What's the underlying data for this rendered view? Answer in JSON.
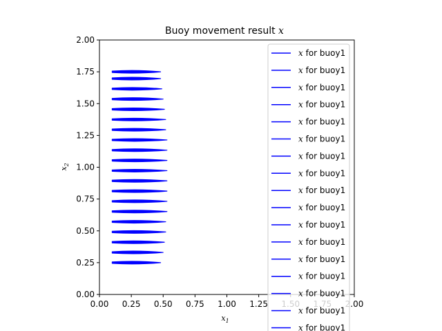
{
  "chart_data": {
    "type": "line",
    "title": "Buoy movement result",
    "title_var": "x",
    "xlabel": "x",
    "xlabel_sub": "1",
    "ylabel": "x",
    "ylabel_sub": "2",
    "xlim": [
      0.0,
      2.0
    ],
    "ylim": [
      0.0,
      2.0
    ],
    "xticks": [
      "0.00",
      "0.25",
      "0.50",
      "0.75",
      "1.00",
      "1.25",
      "1.50",
      "1.75",
      "2.00"
    ],
    "yticks": [
      "0.00",
      "0.25",
      "0.50",
      "0.75",
      "1.00",
      "1.25",
      "1.50",
      "1.75",
      "2.00"
    ],
    "series_color": "#0000ff",
    "legend": {
      "placement": "upper-right",
      "entry_var": "x",
      "entry_text": " for buoy1",
      "visible_entries": 17
    },
    "series": [
      {
        "y": 0.25,
        "x_start": 0.1,
        "x_end": 0.48
      },
      {
        "y": 0.3304,
        "x_start": 0.1,
        "x_end": 0.5
      },
      {
        "y": 0.4107,
        "x_start": 0.1,
        "x_end": 0.51
      },
      {
        "y": 0.4911,
        "x_start": 0.1,
        "x_end": 0.52
      },
      {
        "y": 0.5714,
        "x_start": 0.1,
        "x_end": 0.52
      },
      {
        "y": 0.6518,
        "x_start": 0.1,
        "x_end": 0.53
      },
      {
        "y": 0.7321,
        "x_start": 0.1,
        "x_end": 0.53
      },
      {
        "y": 0.8125,
        "x_start": 0.1,
        "x_end": 0.53
      },
      {
        "y": 0.8929,
        "x_start": 0.1,
        "x_end": 0.53
      },
      {
        "y": 0.9732,
        "x_start": 0.1,
        "x_end": 0.53
      },
      {
        "y": 1.0536,
        "x_start": 0.1,
        "x_end": 0.53
      },
      {
        "y": 1.1339,
        "x_start": 0.1,
        "x_end": 0.53
      },
      {
        "y": 1.2143,
        "x_start": 0.1,
        "x_end": 0.53
      },
      {
        "y": 1.2946,
        "x_start": 0.1,
        "x_end": 0.52
      },
      {
        "y": 1.375,
        "x_start": 0.1,
        "x_end": 0.52
      },
      {
        "y": 1.4554,
        "x_start": 0.1,
        "x_end": 0.51
      },
      {
        "y": 1.5357,
        "x_start": 0.1,
        "x_end": 0.5
      },
      {
        "y": 1.6161,
        "x_start": 0.1,
        "x_end": 0.49
      },
      {
        "y": 1.6964,
        "x_start": 0.1,
        "x_end": 0.48
      },
      {
        "y": 1.75,
        "x_start": 0.1,
        "x_end": 0.48
      }
    ]
  }
}
